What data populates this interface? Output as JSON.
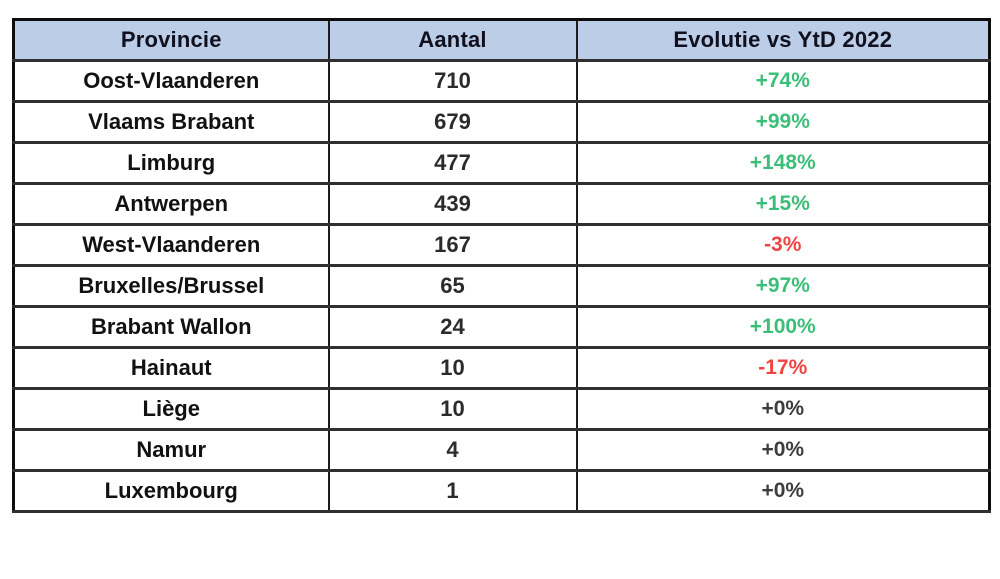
{
  "colors": {
    "header_bg": "#bccde8",
    "up": "#3cbe78",
    "down": "#ee4444",
    "flat": "#3d3d3d",
    "border": "#1c1c1c"
  },
  "chart_data": {
    "type": "table",
    "title": "",
    "columns": [
      "Provincie",
      "Aantal",
      "Evolutie vs YtD 2022"
    ],
    "rows": [
      {
        "province": "Oost-Vlaanderen",
        "aantal": "710",
        "evolutie": "+74%",
        "trend": "up"
      },
      {
        "province": "Vlaams Brabant",
        "aantal": "679",
        "evolutie": "+99%",
        "trend": "up"
      },
      {
        "province": "Limburg",
        "aantal": "477",
        "evolutie": "+148%",
        "trend": "up"
      },
      {
        "province": "Antwerpen",
        "aantal": "439",
        "evolutie": "+15%",
        "trend": "up"
      },
      {
        "province": "West-Vlaanderen",
        "aantal": "167",
        "evolutie": "-3%",
        "trend": "down"
      },
      {
        "province": "Bruxelles/Brussel",
        "aantal": "65",
        "evolutie": "+97%",
        "trend": "up"
      },
      {
        "province": "Brabant Wallon",
        "aantal": "24",
        "evolutie": "+100%",
        "trend": "up"
      },
      {
        "province": "Hainaut",
        "aantal": "10",
        "evolutie": "-17%",
        "trend": "down"
      },
      {
        "province": "Liège",
        "aantal": "10",
        "evolutie": "+0%",
        "trend": "flat"
      },
      {
        "province": "Namur",
        "aantal": "4",
        "evolutie": "+0%",
        "trend": "flat"
      },
      {
        "province": "Luxembourg",
        "aantal": "1",
        "evolutie": "+0%",
        "trend": "flat"
      }
    ]
  }
}
